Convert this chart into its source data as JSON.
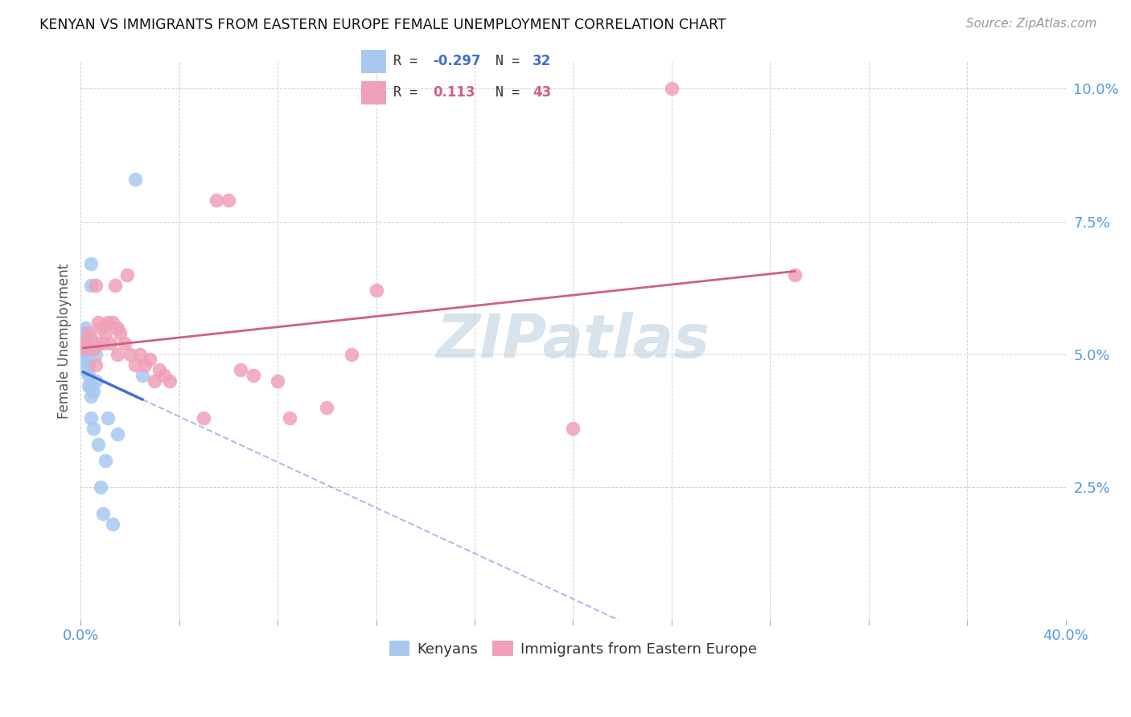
{
  "title": "KENYAN VS IMMIGRANTS FROM EASTERN EUROPE FEMALE UNEMPLOYMENT CORRELATION CHART",
  "source": "Source: ZipAtlas.com",
  "ylabel": "Female Unemployment",
  "xlim": [
    0.0,
    0.4
  ],
  "ylim": [
    0.0,
    0.105
  ],
  "yticks": [
    0.0,
    0.025,
    0.05,
    0.075,
    0.1
  ],
  "blue_color": "#A8C8F0",
  "pink_color": "#F0A0B8",
  "blue_line_color": "#4070D0",
  "pink_line_color": "#D06080",
  "background_color": "#FFFFFF",
  "watermark": "ZIPatlas",
  "kenyan_x": [
    0.001,
    0.001,
    0.001,
    0.001,
    0.002,
    0.002,
    0.002,
    0.002,
    0.002,
    0.002,
    0.003,
    0.003,
    0.003,
    0.003,
    0.004,
    0.004,
    0.004,
    0.004,
    0.004,
    0.005,
    0.005,
    0.006,
    0.006,
    0.007,
    0.008,
    0.009,
    0.01,
    0.011,
    0.013,
    0.015,
    0.022,
    0.025
  ],
  "kenyan_y": [
    0.05,
    0.051,
    0.052,
    0.054,
    0.047,
    0.049,
    0.051,
    0.052,
    0.053,
    0.055,
    0.044,
    0.046,
    0.048,
    0.05,
    0.038,
    0.042,
    0.044,
    0.063,
    0.067,
    0.036,
    0.043,
    0.045,
    0.05,
    0.033,
    0.025,
    0.02,
    0.03,
    0.038,
    0.018,
    0.035,
    0.083,
    0.046
  ],
  "eastern_europe_x": [
    0.001,
    0.002,
    0.003,
    0.004,
    0.005,
    0.006,
    0.006,
    0.007,
    0.007,
    0.008,
    0.009,
    0.01,
    0.011,
    0.012,
    0.013,
    0.014,
    0.015,
    0.015,
    0.016,
    0.018,
    0.019,
    0.02,
    0.022,
    0.024,
    0.026,
    0.028,
    0.03,
    0.032,
    0.034,
    0.036,
    0.05,
    0.055,
    0.06,
    0.065,
    0.07,
    0.08,
    0.085,
    0.1,
    0.11,
    0.12,
    0.2,
    0.24,
    0.29
  ],
  "eastern_europe_y": [
    0.052,
    0.051,
    0.054,
    0.053,
    0.051,
    0.048,
    0.063,
    0.052,
    0.056,
    0.055,
    0.052,
    0.054,
    0.056,
    0.052,
    0.056,
    0.063,
    0.05,
    0.055,
    0.054,
    0.052,
    0.065,
    0.05,
    0.048,
    0.05,
    0.048,
    0.049,
    0.045,
    0.047,
    0.046,
    0.045,
    0.038,
    0.079,
    0.079,
    0.047,
    0.046,
    0.045,
    0.038,
    0.04,
    0.05,
    0.062,
    0.036,
    0.1,
    0.065
  ],
  "R_kenyan": -0.297,
  "N_kenyan": 32,
  "R_eastern": 0.113,
  "N_eastern": 43,
  "kenyan_line_x_end": 0.025,
  "eastern_line_x_start": 0.001,
  "eastern_line_x_end": 0.29
}
